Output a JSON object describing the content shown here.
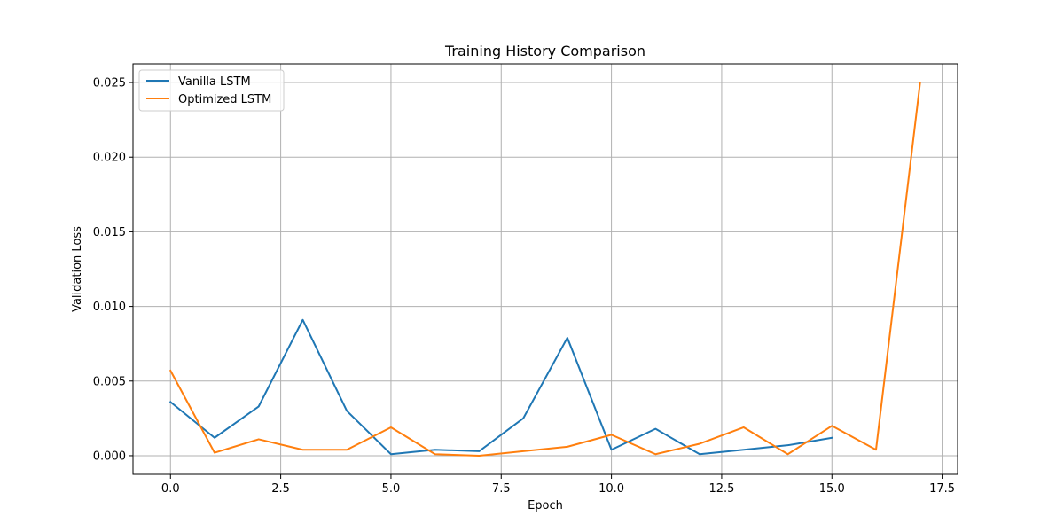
{
  "chart_data": {
    "type": "line",
    "title": "Training History Comparison",
    "xlabel": "Epoch",
    "ylabel": "Validation Loss",
    "xlim": [
      -0.85,
      17.85
    ],
    "ylim": [
      -0.00125,
      0.02625
    ],
    "grid": true,
    "legend_position": "top-left",
    "x_ticks": [
      0.0,
      2.5,
      5.0,
      7.5,
      10.0,
      12.5,
      15.0,
      17.5
    ],
    "x_tick_labels": [
      "0.0",
      "2.5",
      "5.0",
      "7.5",
      "10.0",
      "12.5",
      "15.0",
      "17.5"
    ],
    "y_ticks": [
      0.0,
      0.005,
      0.01,
      0.015,
      0.02,
      0.025
    ],
    "y_tick_labels": [
      "0.000",
      "0.005",
      "0.010",
      "0.015",
      "0.020",
      "0.025"
    ],
    "series": [
      {
        "name": "Vanilla LSTM",
        "color": "#1f77b4",
        "x": [
          0,
          1,
          2,
          3,
          4,
          5,
          6,
          7,
          8,
          9,
          10,
          11,
          12,
          13,
          14,
          15
        ],
        "values": [
          0.0036,
          0.0012,
          0.0033,
          0.0091,
          0.003,
          0.0001,
          0.0004,
          0.0003,
          0.0025,
          0.0079,
          0.0004,
          0.0018,
          0.0001,
          0.0004,
          0.0007,
          0.0012
        ]
      },
      {
        "name": "Optimized LSTM",
        "color": "#ff7f0e",
        "x": [
          0,
          1,
          2,
          3,
          4,
          5,
          6,
          7,
          8,
          9,
          10,
          11,
          12,
          13,
          14,
          15,
          16,
          17
        ],
        "values": [
          0.0057,
          0.0002,
          0.0011,
          0.0004,
          0.0004,
          0.0019,
          0.0001,
          0.0,
          0.0003,
          0.0006,
          0.0014,
          0.0001,
          0.0008,
          0.0019,
          0.0001,
          0.002,
          0.0004,
          0.025
        ]
      }
    ]
  }
}
